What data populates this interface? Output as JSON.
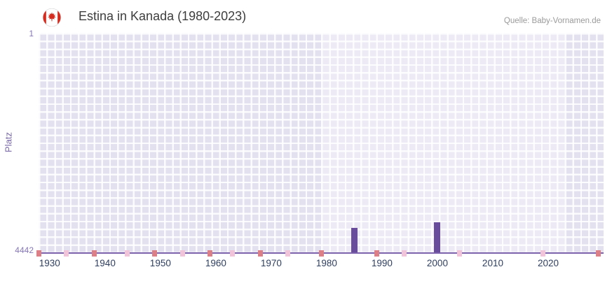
{
  "header": {
    "title": "Estina in Kanada (1980-2023)",
    "source": "Quelle: Baby-Vornamen.de"
  },
  "chart_data": {
    "type": "bar",
    "title": "Estina in Kanada (1980-2023)",
    "ylabel": "Platz",
    "y_axis": {
      "min": 1,
      "max": 4442,
      "reversed": true,
      "tick_labels": [
        "1",
        "4442"
      ]
    },
    "x_axis": {
      "range": [
        1928,
        2030
      ],
      "tick_years": [
        1930,
        1940,
        1950,
        1960,
        1970,
        1980,
        1990,
        2000,
        2010,
        2020
      ],
      "tick_labels": [
        "1930",
        "1940",
        "1950",
        "1960",
        "1970",
        "1980",
        "1990",
        "2000",
        "2010",
        "2020"
      ]
    },
    "highlight_range": [
      1979,
      2023
    ],
    "bars": [
      {
        "year": 1985,
        "platz": 3950
      },
      {
        "year": 2000,
        "platz": 3830
      }
    ],
    "baseline_markers": [
      {
        "year": 1928,
        "color": "red"
      },
      {
        "year": 1933,
        "color": "pink"
      },
      {
        "year": 1938,
        "color": "red"
      },
      {
        "year": 1944,
        "color": "pink"
      },
      {
        "year": 1949,
        "color": "red"
      },
      {
        "year": 1954,
        "color": "pink"
      },
      {
        "year": 1959,
        "color": "red"
      },
      {
        "year": 1963,
        "color": "pink"
      },
      {
        "year": 1968,
        "color": "red"
      },
      {
        "year": 1973,
        "color": "pink"
      },
      {
        "year": 1979,
        "color": "red"
      },
      {
        "year": 1989,
        "color": "red"
      },
      {
        "year": 1994,
        "color": "pink"
      },
      {
        "year": 2004,
        "color": "pink"
      },
      {
        "year": 2019,
        "color": "pink"
      },
      {
        "year": 2029,
        "color": "red"
      }
    ],
    "colors": {
      "bar": "#6a4c9c",
      "marker_red": "#dc7f86",
      "marker_pink": "#f2c4d9",
      "plot_bg": "#e3e0ef",
      "highlight_bg": "#edeaf6",
      "axis_line": "#7c62ac",
      "flag_red": "#d52b1e"
    }
  }
}
